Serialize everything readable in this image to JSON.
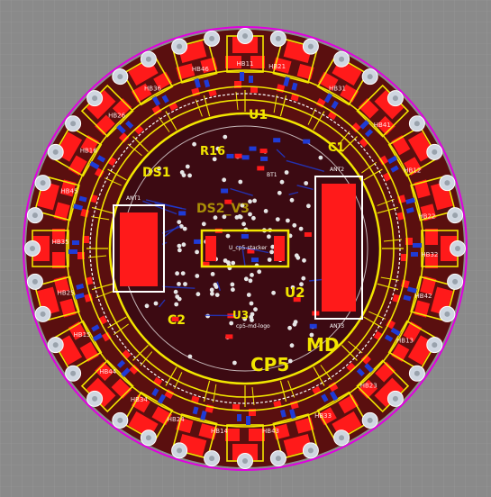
{
  "board": {
    "labels": {
      "ds1": "DS1",
      "r16": "R16",
      "u1": "U1",
      "c1": "C1",
      "u2": "U2",
      "c2": "C2",
      "u3": "U3",
      "md": "MD",
      "cp5": "CP5",
      "rev": "DS2_V3",
      "stacker": "U_cp5-stacker",
      "logo": "cp5-md-logo",
      "ant1": "ANT1",
      "ant2": "ANT2",
      "ant3": "ANT3",
      "bt1": "BT1"
    },
    "hb_labels": [
      {
        "text": "HB21",
        "angle": -80
      },
      {
        "text": "HB31",
        "angle": -60
      },
      {
        "text": "HB41",
        "angle": -42
      },
      {
        "text": "HB12",
        "angle": -25
      },
      {
        "text": "HB22",
        "angle": -10
      },
      {
        "text": "HB32",
        "angle": 2
      },
      {
        "text": "HB42",
        "angle": 15
      },
      {
        "text": "HB13",
        "angle": 30
      },
      {
        "text": "HB23",
        "angle": 48
      },
      {
        "text": "HB33",
        "angle": 65
      },
      {
        "text": "HB43",
        "angle": 82
      },
      {
        "text": "HB14",
        "angle": 98
      },
      {
        "text": "HB24",
        "angle": 112
      },
      {
        "text": "HB34",
        "angle": 125
      },
      {
        "text": "HB44",
        "angle": 138
      },
      {
        "text": "HB15",
        "angle": 152
      },
      {
        "text": "HB25",
        "angle": 166
      },
      {
        "text": "HB35",
        "angle": 182
      },
      {
        "text": "HB45",
        "angle": 198
      },
      {
        "text": "HB16",
        "angle": 212
      },
      {
        "text": "HB26",
        "angle": 226
      },
      {
        "text": "HB36",
        "angle": 240
      },
      {
        "text": "HB46",
        "angle": 256
      },
      {
        "text": "HB11",
        "angle": 270
      }
    ],
    "colors": {
      "background": "#8a8a8a",
      "grid": "#9a9a9a",
      "board_fill": "#5a0f0f",
      "copper": "#ff1a1a",
      "silkscreen": "#f2e600",
      "bottom_copper": "#1f3bd6",
      "outline": "#e000e0",
      "via": "#e6e6e6"
    },
    "icons": {
      "mounting_pad": "hole-icon"
    }
  }
}
